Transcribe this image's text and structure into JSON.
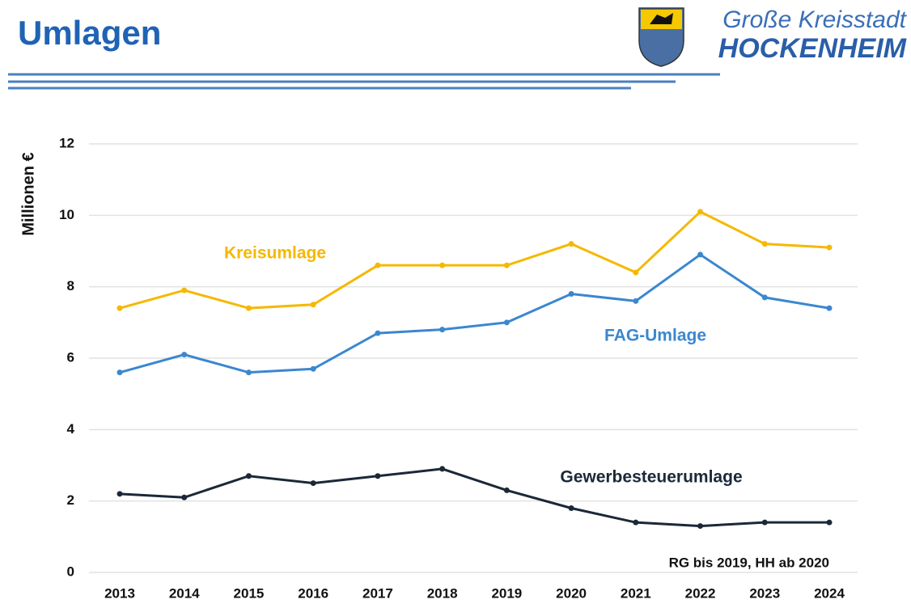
{
  "header": {
    "title": "Umlagen",
    "logo_line1": "Große Kreisstadt",
    "logo_line2": "HOCKENHEIM"
  },
  "chart_data": {
    "type": "line",
    "y_label": "Millionen €",
    "categories": [
      "2013",
      "2014",
      "2015",
      "2016",
      "2017",
      "2018",
      "2019",
      "2020",
      "2021",
      "2022",
      "2023",
      "2024"
    ],
    "series": [
      {
        "name": "Kreisumlage",
        "color": "#f5b800",
        "values": [
          7.4,
          7.9,
          7.4,
          7.5,
          8.6,
          8.6,
          8.6,
          9.2,
          8.4,
          10.1,
          9.2,
          9.1
        ]
      },
      {
        "name": "FAG-Umlage",
        "color": "#3a87d0",
        "values": [
          5.6,
          6.1,
          5.6,
          5.7,
          6.7,
          6.8,
          7.0,
          7.8,
          7.6,
          8.9,
          7.7,
          7.4
        ]
      },
      {
        "name": "Gewerbesteuerumlage",
        "color": "#1b2838",
        "values": [
          2.2,
          2.1,
          2.7,
          2.5,
          2.7,
          2.9,
          2.3,
          1.8,
          1.4,
          1.3,
          1.4,
          1.4
        ]
      }
    ],
    "annotation": "RG bis 2019, HH ab 2020",
    "ylim": [
      0,
      12
    ],
    "yticks": [
      0,
      2,
      4,
      6,
      8,
      10,
      12
    ],
    "grid": true
  }
}
